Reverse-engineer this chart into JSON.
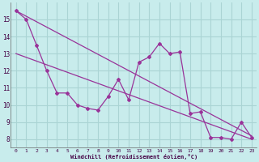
{
  "xlabel": "Windchill (Refroidissement éolien,°C)",
  "ylabel": "",
  "bg_color": "#c8ecec",
  "grid_color": "#aad4d4",
  "line_color": "#993399",
  "xlim": [
    -0.5,
    23.5
  ],
  "ylim": [
    7.5,
    16.0
  ],
  "xticks": [
    0,
    1,
    2,
    3,
    4,
    5,
    6,
    7,
    8,
    9,
    10,
    11,
    12,
    13,
    14,
    15,
    16,
    17,
    18,
    19,
    20,
    21,
    22,
    23
  ],
  "yticks": [
    8,
    9,
    10,
    11,
    12,
    13,
    14,
    15
  ],
  "main_data": [
    15.5,
    15.0,
    13.5,
    12.0,
    10.7,
    10.7,
    10.0,
    9.8,
    9.7,
    10.5,
    11.5,
    10.3,
    12.5,
    12.8,
    13.6,
    13.0,
    13.1,
    9.5,
    9.6,
    8.1,
    8.1,
    8.0,
    9.0,
    8.1
  ],
  "trend1_x": [
    0,
    23
  ],
  "trend1_y": [
    15.5,
    8.2
  ],
  "trend2_x": [
    0,
    23
  ],
  "trend2_y": [
    13.0,
    8.0
  ]
}
